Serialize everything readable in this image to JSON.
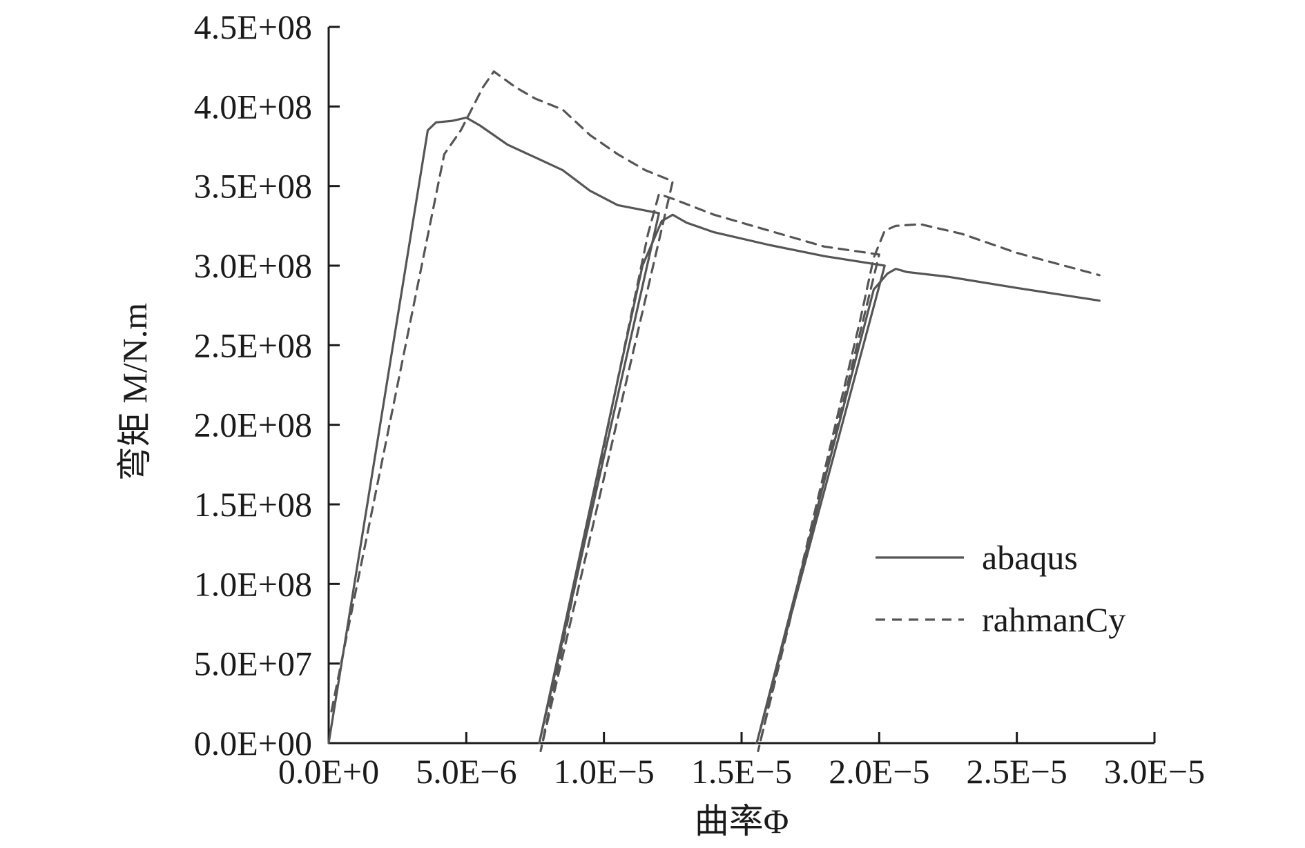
{
  "chart_data": {
    "type": "line",
    "title": "",
    "xlabel": "曲率Φ",
    "ylabel": "弯矩 M/N.m",
    "xlim": [
      0,
      3e-05
    ],
    "ylim": [
      0,
      450000000.0
    ],
    "x_ticks": [
      0,
      5e-06,
      1e-05,
      1.5e-05,
      2e-05,
      2.5e-05,
      3e-05
    ],
    "x_tick_labels": [
      "0.0E+0",
      "5.0E−6",
      "1.0E−5",
      "1.5E−5",
      "2.0E−5",
      "2.5E−5",
      "3.0E−5"
    ],
    "y_ticks": [
      0,
      50000000.0,
      100000000.0,
      150000000.0,
      200000000.0,
      250000000.0,
      300000000.0,
      350000000.0,
      400000000.0,
      450000000.0
    ],
    "y_tick_labels": [
      "0.0E+00",
      "5.0E+07",
      "1.0E+08",
      "1.5E+08",
      "2.0E+08",
      "2.5E+08",
      "3.0E+08",
      "3.5E+08",
      "4.0E+08",
      "4.5E+08"
    ],
    "grid": false,
    "legend_position": "right",
    "series": [
      {
        "name": "abaqus",
        "style": "solid",
        "color": "#555555",
        "points": [
          [
            0,
            0
          ],
          [
            3.6e-06,
            385000000.0
          ],
          [
            3.9e-06,
            390000000.0
          ],
          [
            4.5e-06,
            391000000.0
          ],
          [
            5e-06,
            393000000.0
          ],
          [
            5.5e-06,
            388000000.0
          ],
          [
            6.5e-06,
            376000000.0
          ],
          [
            7.5e-06,
            368000000.0
          ],
          [
            8.5e-06,
            360000000.0
          ],
          [
            9.5e-06,
            347000000.0
          ],
          [
            1.05e-05,
            338000000.0
          ],
          [
            1.2e-05,
            333000000.0
          ],
          [
            7.65e-06,
            0
          ],
          [
            1.14e-05,
            300000000.0
          ],
          [
            1.21e-05,
            328000000.0
          ],
          [
            1.25e-05,
            332000000.0
          ],
          [
            1.3e-05,
            327000000.0
          ],
          [
            1.4e-05,
            321000000.0
          ],
          [
            1.6e-05,
            313000000.0
          ],
          [
            1.8e-05,
            306000000.0
          ],
          [
            2.02e-05,
            300000000.0
          ],
          [
            1.555e-05,
            0
          ],
          [
            1.98e-05,
            285000000.0
          ],
          [
            2.03e-05,
            295000000.0
          ],
          [
            2.06e-05,
            298000000.0
          ],
          [
            2.1e-05,
            296000000.0
          ],
          [
            2.25e-05,
            293000000.0
          ],
          [
            2.5e-05,
            286000000.0
          ],
          [
            2.8e-05,
            278000000.0
          ]
        ]
      },
      {
        "name": "rahmanCy",
        "style": "dashed",
        "color": "#555555",
        "points": [
          [
            1e-07,
            20000000.0
          ],
          [
            4.2e-06,
            370000000.0
          ],
          [
            4.8e-06,
            385000000.0
          ],
          [
            5.6e-06,
            412000000.0
          ],
          [
            6e-06,
            422000000.0
          ],
          [
            6.8e-06,
            412000000.0
          ],
          [
            7.5e-06,
            405000000.0
          ],
          [
            8.5e-06,
            398000000.0
          ],
          [
            9.5e-06,
            382000000.0
          ],
          [
            1.05e-05,
            370000000.0
          ],
          [
            1.15e-05,
            360000000.0
          ],
          [
            1.25e-05,
            353000000.0
          ],
          [
            7.7e-06,
            -5000000.0
          ],
          [
            1.16e-05,
            320000000.0
          ],
          [
            1.2e-05,
            345000000.0
          ],
          [
            1.25e-05,
            342000000.0
          ],
          [
            1.4e-05,
            332000000.0
          ],
          [
            1.6e-05,
            322000000.0
          ],
          [
            1.8e-05,
            312000000.0
          ],
          [
            2e-05,
            307000000.0
          ],
          [
            1.56e-05,
            -5000000.0
          ],
          [
            1.93e-05,
            265000000.0
          ],
          [
            1.98e-05,
            305000000.0
          ],
          [
            2.02e-05,
            322000000.0
          ],
          [
            2.06e-05,
            325000000.0
          ],
          [
            2.15e-05,
            326000000.0
          ],
          [
            2.3e-05,
            320000000.0
          ],
          [
            2.5e-05,
            308000000.0
          ],
          [
            2.8e-05,
            294000000.0
          ]
        ]
      }
    ]
  }
}
